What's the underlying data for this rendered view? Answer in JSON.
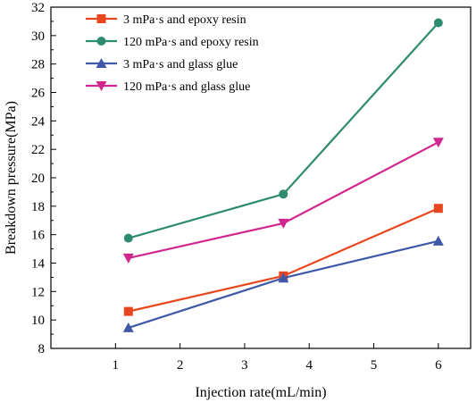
{
  "chart_data": {
    "type": "line",
    "xlabel": "Injection rate(mL/min)",
    "ylabel": "Breakdown pressure(MPa)",
    "xlim": [
      0,
      6.5
    ],
    "ylim": [
      8,
      32
    ],
    "xticks": [
      1,
      2,
      3,
      4,
      5,
      6
    ],
    "yticks": [
      8,
      10,
      12,
      14,
      16,
      18,
      20,
      22,
      24,
      26,
      28,
      30,
      32
    ],
    "x": [
      1.2,
      3.6,
      6
    ],
    "legend_position": "top-left",
    "grid": false,
    "series": [
      {
        "name": "3 mPa·s and epoxy resin",
        "values": [
          10.6,
          13.1,
          17.85
        ],
        "color": "#e8461e",
        "marker": "square"
      },
      {
        "name": "120 mPa·s and epoxy resin",
        "values": [
          15.75,
          18.85,
          30.9
        ],
        "color": "#2e8b6f",
        "marker": "circle"
      },
      {
        "name": "3 mPa·s and glass glue",
        "values": [
          9.45,
          12.95,
          15.55
        ],
        "color": "#3f59a8",
        "marker": "triangle-up"
      },
      {
        "name": "120 mPa·s and glass glue",
        "values": [
          14.35,
          16.8,
          22.5
        ],
        "color": "#d1268e",
        "marker": "triangle-down"
      }
    ]
  }
}
